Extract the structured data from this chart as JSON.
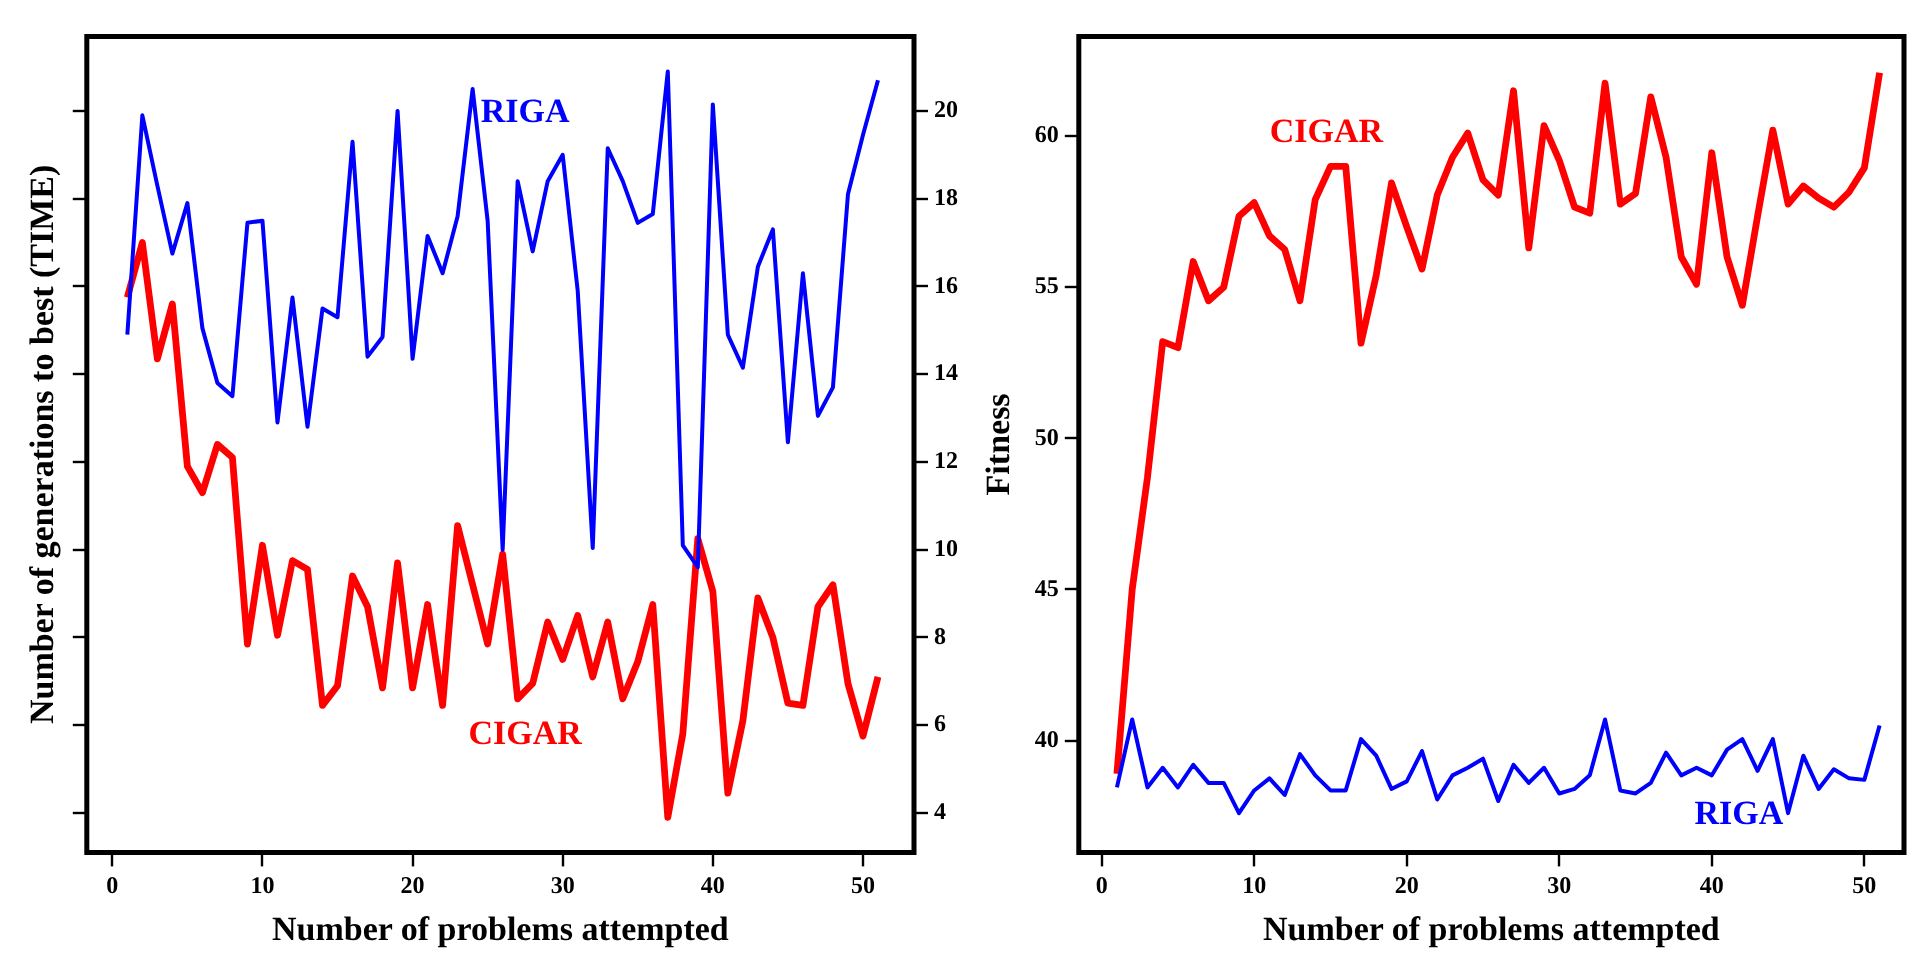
{
  "chart_data": [
    {
      "type": "line",
      "xlabel": "Number of problems attempted",
      "ylabel": "Number of generations to best (TIME)",
      "x": [
        1,
        2,
        3,
        4,
        5,
        6,
        7,
        8,
        9,
        10,
        11,
        12,
        13,
        14,
        15,
        16,
        17,
        18,
        19,
        20,
        21,
        22,
        23,
        24,
        25,
        26,
        27,
        28,
        29,
        30,
        31,
        32,
        33,
        34,
        35,
        36,
        37,
        38,
        39,
        40,
        41,
        42,
        43,
        44,
        45,
        46,
        47,
        48,
        49,
        50,
        51
      ],
      "xlim": [
        -1.7,
        53.4
      ],
      "xticks": [
        0,
        10,
        20,
        30,
        40,
        50
      ],
      "ylim": [
        3.1,
        21.7
      ],
      "yticks": [
        4,
        6,
        8,
        10,
        12,
        14,
        16,
        18,
        20
      ],
      "grid": false,
      "marker": "none",
      "line_style": "solid",
      "series": [
        {
          "name": "RIGA",
          "color": "#0000ff",
          "values": [
            14.9,
            19.9,
            18.3,
            16.75,
            17.9,
            15.05,
            13.8,
            13.5,
            17.45,
            17.5,
            12.9,
            15.75,
            12.8,
            15.5,
            15.3,
            19.3,
            14.4,
            14.85,
            20.0,
            14.35,
            17.15,
            16.3,
            17.6,
            20.5,
            17.5,
            10.0,
            18.4,
            16.8,
            18.4,
            19.0,
            15.9,
            10.04,
            19.15,
            18.4,
            17.45,
            17.65,
            20.9,
            10.1,
            9.6,
            20.15,
            14.9,
            14.15,
            16.45,
            17.3,
            12.45,
            16.3,
            13.05,
            13.7,
            18.1,
            19.45,
            20.7
          ]
        },
        {
          "name": "CIGAR",
          "color": "#ff0000",
          "values": [
            15.75,
            17.0,
            14.35,
            15.6,
            11.9,
            11.3,
            12.4,
            12.1,
            7.85,
            10.1,
            8.05,
            9.75,
            9.55,
            6.45,
            6.9,
            9.4,
            8.7,
            6.85,
            9.7,
            6.85,
            8.75,
            6.45,
            10.55,
            9.2,
            7.85,
            9.9,
            6.6,
            6.95,
            8.35,
            7.5,
            8.5,
            7.1,
            8.35,
            6.6,
            7.45,
            8.75,
            3.9,
            5.8,
            10.25,
            9.05,
            4.45,
            6.1,
            8.9,
            8.0,
            6.5,
            6.45,
            8.7,
            9.2,
            6.95,
            5.75,
            7.1
          ]
        }
      ]
    },
    {
      "type": "line",
      "xlabel": "Number of problems attempted",
      "ylabel": "Fitness",
      "x": [
        1,
        2,
        3,
        4,
        5,
        6,
        7,
        8,
        9,
        10,
        11,
        12,
        13,
        14,
        15,
        16,
        17,
        18,
        19,
        20,
        21,
        22,
        23,
        24,
        25,
        26,
        27,
        28,
        29,
        30,
        31,
        32,
        33,
        34,
        35,
        36,
        37,
        38,
        39,
        40,
        41,
        42,
        43,
        44,
        45,
        46,
        47,
        48,
        49,
        50,
        51
      ],
      "xlim": [
        -1.5,
        52.6
      ],
      "xticks": [
        0,
        10,
        20,
        30,
        40,
        50
      ],
      "ylim": [
        36.3,
        63.3
      ],
      "yticks": [
        40,
        45,
        50,
        55,
        60
      ],
      "grid": false,
      "marker": "none",
      "line_style": "solid",
      "series": [
        {
          "name": "RIGA",
          "color": "#0000ff",
          "values": [
            38.45,
            40.7,
            38.45,
            39.1,
            38.45,
            39.2,
            38.6,
            38.6,
            37.6,
            38.35,
            38.75,
            38.2,
            39.55,
            38.85,
            38.35,
            38.35,
            40.05,
            39.5,
            38.4,
            38.65,
            39.65,
            38.05,
            38.85,
            39.1,
            39.4,
            38.0,
            39.2,
            38.6,
            39.1,
            38.25,
            38.4,
            38.85,
            40.7,
            38.35,
            38.25,
            38.6,
            39.6,
            38.85,
            39.1,
            38.85,
            39.7,
            40.05,
            39.0,
            40.05,
            37.6,
            39.5,
            38.4,
            39.05,
            38.75,
            38.7,
            40.5
          ]
        },
        {
          "name": "CIGAR",
          "color": "#ff0000",
          "values": [
            38.9,
            45.0,
            48.7,
            53.2,
            53.0,
            55.85,
            54.55,
            55.0,
            57.35,
            57.8,
            56.7,
            56.25,
            54.55,
            57.9,
            59.0,
            59.0,
            53.15,
            55.4,
            58.45,
            57.0,
            55.6,
            58.05,
            59.3,
            60.1,
            58.55,
            58.05,
            61.5,
            56.3,
            60.35,
            59.2,
            57.65,
            57.45,
            61.75,
            57.75,
            58.1,
            61.3,
            59.3,
            56.0,
            55.1,
            59.45,
            56.0,
            54.4,
            57.35,
            60.2,
            57.75,
            58.35,
            57.95,
            57.65,
            58.15,
            58.95,
            62.1
          ]
        }
      ]
    }
  ]
}
